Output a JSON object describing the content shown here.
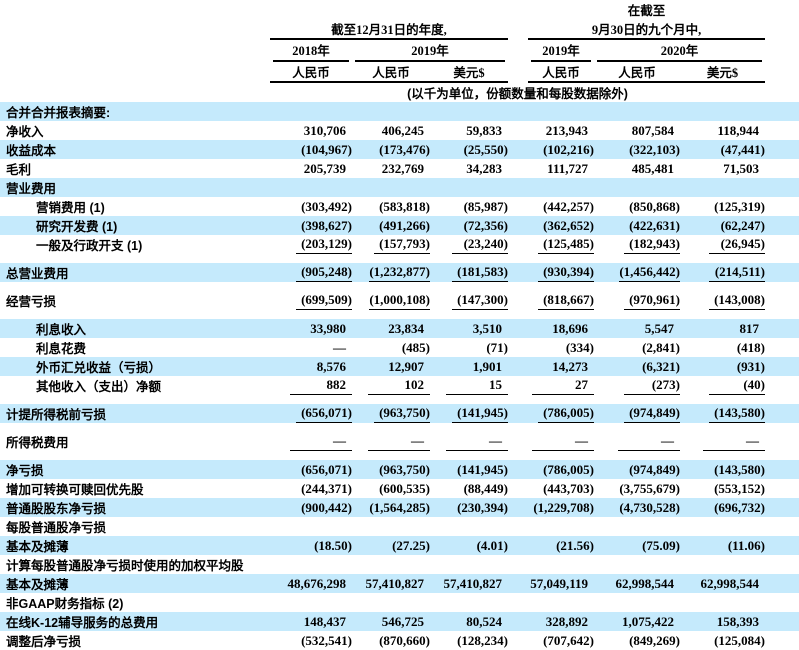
{
  "colors": {
    "highlight": "#c5eafc",
    "text": "#000000",
    "rule": "#000000"
  },
  "header": {
    "group1": {
      "period_line1": "",
      "period_line2": "截至12月31日的年度,"
    },
    "group2": {
      "period_line1": "在截至",
      "period_line2": "9月30日的九个月中,"
    },
    "years": [
      "2018年",
      "2019年",
      "2019年",
      "2020年"
    ],
    "currencies": [
      "人民币",
      "人民币",
      "美元$",
      "人民币",
      "人民币",
      "美元$"
    ],
    "note": "(以千为单位，份额数量和每股数据除外)"
  },
  "rows": [
    {
      "label": "合并合并报表摘要:",
      "values": [
        "",
        "",
        "",
        "",
        "",
        ""
      ],
      "highlight": true,
      "indent": false,
      "underline": false,
      "gap_after": false
    },
    {
      "label": "净收入",
      "values": [
        "310,706",
        "406,245",
        "59,833",
        "213,943",
        "807,584",
        "118,944"
      ],
      "highlight": false,
      "indent": false,
      "underline": false,
      "gap_after": false
    },
    {
      "label": "收益成本",
      "values": [
        "(104,967)",
        "(173,476)",
        "(25,550)",
        "(102,216)",
        "(322,103)",
        "(47,441)"
      ],
      "highlight": true,
      "indent": false,
      "underline": false,
      "gap_after": false
    },
    {
      "label": "毛利",
      "values": [
        "205,739",
        "232,769",
        "34,283",
        "111,727",
        "485,481",
        "71,503"
      ],
      "highlight": false,
      "indent": false,
      "underline": false,
      "gap_after": false
    },
    {
      "label": "营业费用",
      "values": [
        "",
        "",
        "",
        "",
        "",
        ""
      ],
      "highlight": true,
      "indent": false,
      "underline": false,
      "gap_after": false
    },
    {
      "label": "营销费用 (1)",
      "values": [
        "(303,492)",
        "(583,818)",
        "(85,987)",
        "(442,257)",
        "(850,868)",
        "(125,319)"
      ],
      "highlight": false,
      "indent": true,
      "underline": false,
      "gap_after": false
    },
    {
      "label": "研究开发费 (1)",
      "values": [
        "(398,627)",
        "(491,266)",
        "(72,356)",
        "(362,652)",
        "(422,631)",
        "(62,247)"
      ],
      "highlight": true,
      "indent": true,
      "underline": false,
      "gap_after": false
    },
    {
      "label": "一般及行政开支 (1)",
      "values": [
        "(203,129)",
        "(157,793)",
        "(23,240)",
        "(125,485)",
        "(182,943)",
        "(26,945)"
      ],
      "highlight": false,
      "indent": true,
      "underline": true,
      "gap_after": true
    },
    {
      "label": "总营业费用",
      "values": [
        "(905,248)",
        "(1,232,877)",
        "(181,583)",
        "(930,394)",
        "(1,456,442)",
        "(214,511)"
      ],
      "highlight": true,
      "indent": false,
      "underline": true,
      "gap_after": true
    },
    {
      "label": "经营亏损",
      "values": [
        "(699,509)",
        "(1,000,108)",
        "(147,300)",
        "(818,667)",
        "(970,961)",
        "(143,008)"
      ],
      "highlight": false,
      "indent": false,
      "underline": true,
      "gap_after": true
    },
    {
      "label": "利息收入",
      "values": [
        "33,980",
        "23,834",
        "3,510",
        "18,696",
        "5,547",
        "817"
      ],
      "highlight": true,
      "indent": true,
      "underline": false,
      "gap_after": false
    },
    {
      "label": "利息花费",
      "values": [
        "—",
        "(485)",
        "(71)",
        "(334)",
        "(2,841)",
        "(418)"
      ],
      "highlight": false,
      "indent": true,
      "underline": false,
      "gap_after": false
    },
    {
      "label": "外币汇兑收益（亏损）",
      "values": [
        "8,576",
        "12,907",
        "1,901",
        "14,273",
        "(6,321)",
        "(931)"
      ],
      "highlight": true,
      "indent": true,
      "underline": false,
      "gap_after": false
    },
    {
      "label": "其他收入（支出）净额",
      "values": [
        "882",
        "102",
        "15",
        "27",
        "(273)",
        "(40)"
      ],
      "highlight": false,
      "indent": true,
      "underline": true,
      "gap_after": true
    },
    {
      "label": "计提所得税前亏损",
      "values": [
        "(656,071)",
        "(963,750)",
        "(141,945)",
        "(786,005)",
        "(974,849)",
        "(143,580)"
      ],
      "highlight": true,
      "indent": false,
      "underline": true,
      "gap_after": true
    },
    {
      "label": "所得税费用",
      "values": [
        "—",
        "—",
        "—",
        "—",
        "—",
        "—"
      ],
      "highlight": false,
      "indent": false,
      "underline": true,
      "gap_after": true
    },
    {
      "label": "净亏损",
      "values": [
        "(656,071)",
        "(963,750)",
        "(141,945)",
        "(786,005)",
        "(974,849)",
        "(143,580)"
      ],
      "highlight": true,
      "indent": false,
      "underline": false,
      "gap_after": false
    },
    {
      "label": "增加可转换可赎回优先股",
      "values": [
        "(244,371)",
        "(600,535)",
        "(88,449)",
        "(443,703)",
        "(3,755,679)",
        "(553,152)"
      ],
      "highlight": false,
      "indent": false,
      "underline": false,
      "gap_after": false
    },
    {
      "label": "普通股股东净亏损",
      "values": [
        "(900,442)",
        "(1,564,285)",
        "(230,394)",
        "(1,229,708)",
        "(4,730,528)",
        "(696,732)"
      ],
      "highlight": true,
      "indent": false,
      "underline": false,
      "gap_after": false
    },
    {
      "label": "每股普通股净亏损",
      "values": [
        "",
        "",
        "",
        "",
        "",
        ""
      ],
      "highlight": false,
      "indent": false,
      "underline": false,
      "gap_after": false
    },
    {
      "label": "基本及摊薄",
      "values": [
        "(18.50)",
        "(27.25)",
        "(4.01)",
        "(21.56)",
        "(75.09)",
        "(11.06)"
      ],
      "highlight": true,
      "indent": false,
      "underline": false,
      "gap_after": false
    },
    {
      "label": "计算每股普通股净亏损时使用的加权平均股",
      "values": [
        "",
        "",
        "",
        "",
        "",
        ""
      ],
      "highlight": false,
      "indent": false,
      "underline": false,
      "gap_after": false
    },
    {
      "label": "基本及摊薄",
      "values": [
        "48,676,298",
        "57,410,827",
        "57,410,827",
        "57,049,119",
        "62,998,544",
        "62,998,544"
      ],
      "highlight": true,
      "indent": false,
      "underline": false,
      "gap_after": false
    },
    {
      "label": "非GAAP财务指标 (2)",
      "values": [
        "",
        "",
        "",
        "",
        "",
        ""
      ],
      "highlight": false,
      "indent": false,
      "underline": false,
      "gap_after": false
    },
    {
      "label": "在线K-12辅导服务的总费用",
      "values": [
        "148,437",
        "546,725",
        "80,524",
        "328,892",
        "1,075,422",
        "158,393"
      ],
      "highlight": true,
      "indent": false,
      "underline": false,
      "gap_after": false
    },
    {
      "label": "调整后净亏损",
      "values": [
        "(532,541)",
        "(870,660)",
        "(128,234)",
        "(707,642)",
        "(849,269)",
        "(125,084)"
      ],
      "highlight": false,
      "indent": false,
      "underline": false,
      "gap_after": false
    }
  ]
}
